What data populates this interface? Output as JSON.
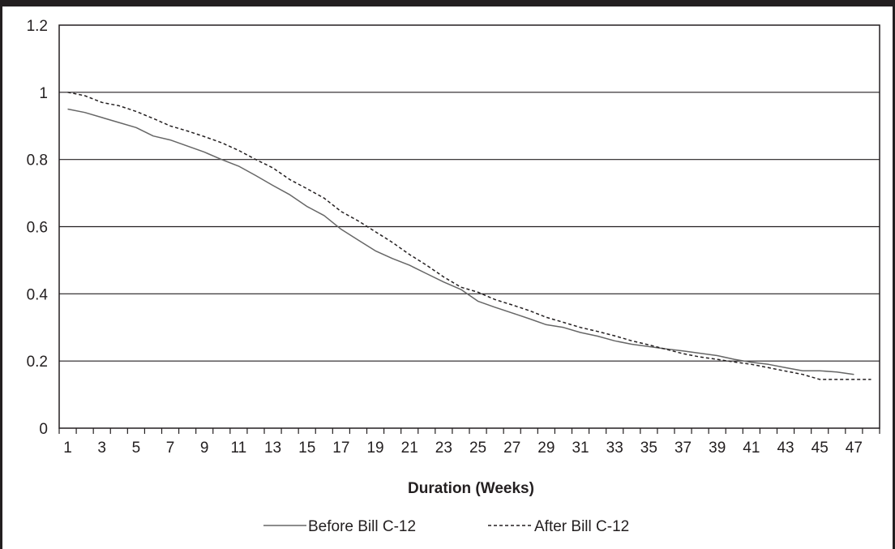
{
  "chart_data": {
    "type": "line",
    "title": "",
    "xlabel": "Duration (Weeks)",
    "ylabel": "",
    "x": [
      1,
      2,
      3,
      4,
      5,
      6,
      7,
      8,
      9,
      10,
      11,
      12,
      13,
      14,
      15,
      16,
      17,
      18,
      19,
      20,
      21,
      22,
      23,
      24,
      25,
      26,
      27,
      28,
      29,
      30,
      31,
      32,
      33,
      34,
      35,
      36,
      37,
      38,
      39,
      40,
      41,
      42,
      43,
      44,
      45,
      46,
      47,
      48
    ],
    "x_tick_labels": [
      "1",
      "3",
      "5",
      "7",
      "9",
      "11",
      "13",
      "15",
      "17",
      "19",
      "21",
      "23",
      "25",
      "27",
      "29",
      "31",
      "33",
      "35",
      "37",
      "39",
      "41",
      "43",
      "45",
      "47"
    ],
    "y_tick_labels": [
      "0",
      "0.2",
      "0.4",
      "0.6",
      "0.8",
      "1",
      "1.2"
    ],
    "ylim": [
      0,
      1.2
    ],
    "grid": "horizontal",
    "legend_position": "bottom",
    "series": [
      {
        "name": "Before Bill C-12",
        "style": "solid",
        "color": "#666666",
        "values": [
          0.95,
          0.94,
          0.925,
          0.91,
          0.895,
          0.87,
          0.858,
          0.84,
          0.822,
          0.8,
          0.78,
          0.752,
          0.723,
          0.695,
          0.66,
          0.633,
          0.592,
          0.56,
          0.528,
          0.505,
          0.485,
          0.46,
          0.435,
          0.413,
          0.378,
          0.36,
          0.343,
          0.326,
          0.308,
          0.3,
          0.285,
          0.274,
          0.26,
          0.25,
          0.243,
          0.236,
          0.23,
          0.223,
          0.216,
          0.205,
          0.196,
          0.19,
          0.18,
          0.171,
          0.171,
          0.167,
          0.16,
          null
        ]
      },
      {
        "name": "After Bill C-12",
        "style": "dashed",
        "color": "#231f20",
        "values": [
          1.0,
          0.99,
          0.97,
          0.96,
          0.943,
          0.922,
          0.9,
          0.885,
          0.868,
          0.85,
          0.827,
          0.8,
          0.775,
          0.74,
          0.713,
          0.685,
          0.645,
          0.617,
          0.585,
          0.553,
          0.517,
          0.485,
          0.45,
          0.42,
          0.405,
          0.383,
          0.367,
          0.35,
          0.33,
          0.315,
          0.3,
          0.288,
          0.275,
          0.26,
          0.248,
          0.235,
          0.222,
          0.212,
          0.205,
          0.197,
          0.19,
          0.18,
          0.17,
          0.16,
          0.145,
          0.145,
          0.145,
          0.145
        ]
      }
    ]
  }
}
